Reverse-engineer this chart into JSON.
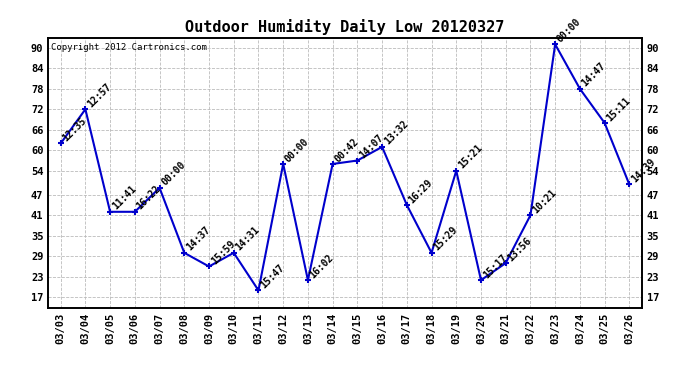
{
  "title": "Outdoor Humidity Daily Low 20120327",
  "copyright": "Copyright 2012 Cartronics.com",
  "dates": [
    "03/03",
    "03/04",
    "03/05",
    "03/06",
    "03/07",
    "03/08",
    "03/09",
    "03/10",
    "03/11",
    "03/12",
    "03/13",
    "03/14",
    "03/15",
    "03/16",
    "03/17",
    "03/18",
    "03/19",
    "03/20",
    "03/21",
    "03/22",
    "03/23",
    "03/24",
    "03/25",
    "03/26"
  ],
  "values": [
    62,
    72,
    42,
    42,
    49,
    30,
    26,
    30,
    19,
    56,
    22,
    56,
    57,
    61,
    44,
    30,
    54,
    22,
    27,
    41,
    91,
    78,
    68,
    50
  ],
  "times": [
    "12:35",
    "12:57",
    "11:41",
    "16:22",
    "00:00",
    "14:37",
    "15:59",
    "14:31",
    "15:47",
    "00:00",
    "16:02",
    "00:42",
    "14:07",
    "13:32",
    "16:29",
    "15:29",
    "15:21",
    "15:17",
    "13:56",
    "10:21",
    "00:00",
    "14:47",
    "15:11",
    "14:39"
  ],
  "yticks": [
    17,
    23,
    29,
    35,
    41,
    47,
    54,
    60,
    66,
    72,
    78,
    84,
    90
  ],
  "ylim": [
    14,
    93
  ],
  "line_color": "#0000cc",
  "marker_color": "#0000cc",
  "bg_color": "#ffffff",
  "grid_color": "#bbbbbb",
  "title_fontsize": 11,
  "label_fontsize": 7,
  "tick_fontsize": 7.5,
  "copyright_fontsize": 6.5
}
